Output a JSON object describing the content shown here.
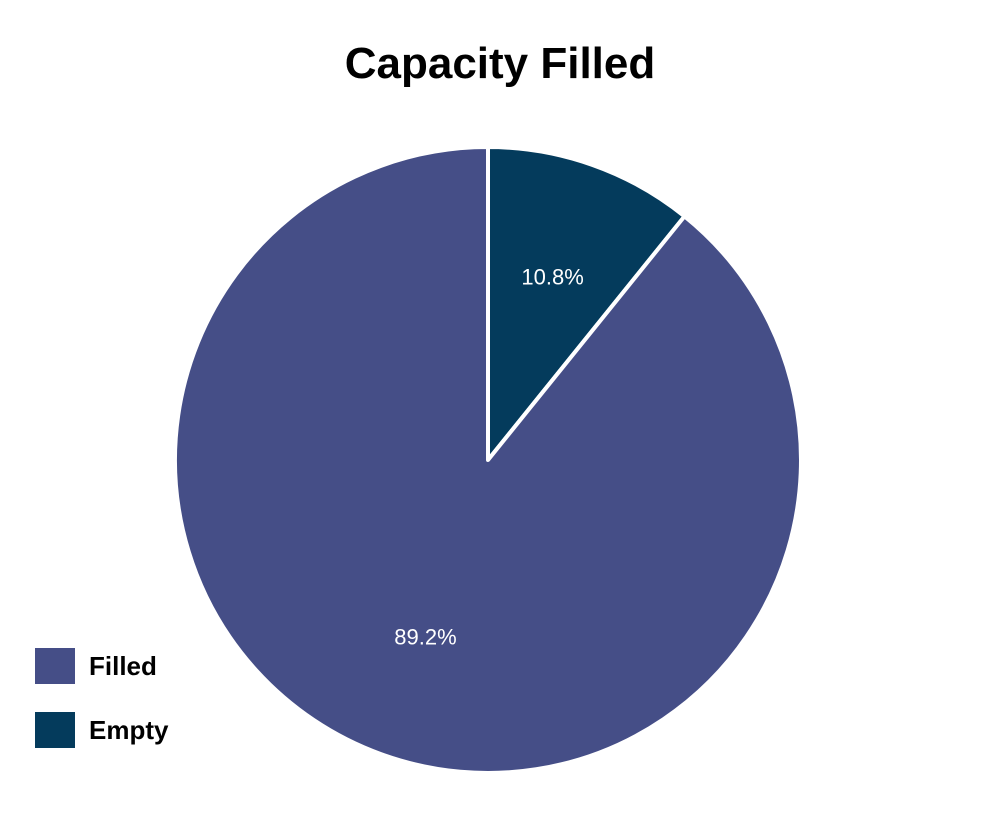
{
  "chart_data": {
    "type": "pie",
    "title": "Capacity Filled",
    "categories": [
      "Filled",
      "Empty"
    ],
    "values": [
      89.2,
      10.8
    ],
    "labels": [
      "89.2%",
      "10.8%"
    ],
    "colors": [
      "#454e87",
      "#043b5c"
    ],
    "slice_order": [
      "Empty",
      "Filled"
    ],
    "start_angle": "12 o'clock, clockwise",
    "legend_placement": "bottom-left"
  }
}
